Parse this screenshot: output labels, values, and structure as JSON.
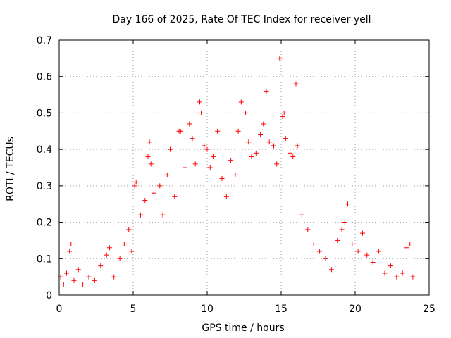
{
  "chart_data": {
    "type": "scatter",
    "title": "Day 166 of 2025, Rate Of TEC Index for receiver yell",
    "xlabel": "GPS time / hours",
    "ylabel": "ROTI / TECUs",
    "xlim": [
      0,
      25
    ],
    "ylim": [
      0,
      0.7
    ],
    "xticks": [
      0,
      5,
      10,
      15,
      20,
      25
    ],
    "yticks": [
      0,
      0.1,
      0.2,
      0.3,
      0.4,
      0.5,
      0.6,
      0.7
    ],
    "xtick_labels": [
      "0",
      "5",
      "10",
      "15",
      "20",
      "25"
    ],
    "ytick_labels": [
      "0",
      "0.1",
      "0.2",
      "0.3",
      "0.4",
      "0.5",
      "0.6",
      "0.7"
    ],
    "grid": true,
    "marker": "+",
    "color": "#ff0000",
    "series": [
      {
        "name": "ROTI",
        "points": [
          [
            0.1,
            0.05
          ],
          [
            0.3,
            0.03
          ],
          [
            0.5,
            0.06
          ],
          [
            0.7,
            0.12
          ],
          [
            0.8,
            0.14
          ],
          [
            1.0,
            0.04
          ],
          [
            1.3,
            0.07
          ],
          [
            1.6,
            0.03
          ],
          [
            2.0,
            0.05
          ],
          [
            2.4,
            0.04
          ],
          [
            2.8,
            0.08
          ],
          [
            3.2,
            0.11
          ],
          [
            3.4,
            0.13
          ],
          [
            3.7,
            0.05
          ],
          [
            4.1,
            0.1
          ],
          [
            4.4,
            0.14
          ],
          [
            4.7,
            0.18
          ],
          [
            4.9,
            0.12
          ],
          [
            5.1,
            0.3
          ],
          [
            5.2,
            0.31
          ],
          [
            5.5,
            0.22
          ],
          [
            5.8,
            0.26
          ],
          [
            6.0,
            0.38
          ],
          [
            6.1,
            0.42
          ],
          [
            6.2,
            0.36
          ],
          [
            6.4,
            0.28
          ],
          [
            6.8,
            0.3
          ],
          [
            7.0,
            0.22
          ],
          [
            7.3,
            0.33
          ],
          [
            7.5,
            0.4
          ],
          [
            7.8,
            0.27
          ],
          [
            8.1,
            0.45
          ],
          [
            8.2,
            0.45
          ],
          [
            8.5,
            0.35
          ],
          [
            8.8,
            0.47
          ],
          [
            9.0,
            0.43
          ],
          [
            9.2,
            0.36
          ],
          [
            9.5,
            0.53
          ],
          [
            9.6,
            0.5
          ],
          [
            9.8,
            0.41
          ],
          [
            10.0,
            0.4
          ],
          [
            10.2,
            0.35
          ],
          [
            10.4,
            0.38
          ],
          [
            10.7,
            0.45
          ],
          [
            11.0,
            0.32
          ],
          [
            11.3,
            0.27
          ],
          [
            11.6,
            0.37
          ],
          [
            11.9,
            0.33
          ],
          [
            12.1,
            0.45
          ],
          [
            12.3,
            0.53
          ],
          [
            12.6,
            0.5
          ],
          [
            12.8,
            0.42
          ],
          [
            13.0,
            0.38
          ],
          [
            13.3,
            0.39
          ],
          [
            13.6,
            0.44
          ],
          [
            13.8,
            0.47
          ],
          [
            14.0,
            0.56
          ],
          [
            14.2,
            0.42
          ],
          [
            14.5,
            0.41
          ],
          [
            14.7,
            0.36
          ],
          [
            14.9,
            0.65
          ],
          [
            15.1,
            0.49
          ],
          [
            15.2,
            0.5
          ],
          [
            15.3,
            0.43
          ],
          [
            15.6,
            0.39
          ],
          [
            15.8,
            0.38
          ],
          [
            16.0,
            0.58
          ],
          [
            16.1,
            0.41
          ],
          [
            16.4,
            0.22
          ],
          [
            16.8,
            0.18
          ],
          [
            17.2,
            0.14
          ],
          [
            17.6,
            0.12
          ],
          [
            18.0,
            0.1
          ],
          [
            18.4,
            0.07
          ],
          [
            18.8,
            0.15
          ],
          [
            19.1,
            0.18
          ],
          [
            19.3,
            0.2
          ],
          [
            19.5,
            0.25
          ],
          [
            19.8,
            0.14
          ],
          [
            20.2,
            0.12
          ],
          [
            20.5,
            0.17
          ],
          [
            20.8,
            0.11
          ],
          [
            21.2,
            0.09
          ],
          [
            21.6,
            0.12
          ],
          [
            22.0,
            0.06
          ],
          [
            22.4,
            0.08
          ],
          [
            22.8,
            0.05
          ],
          [
            23.2,
            0.06
          ],
          [
            23.5,
            0.13
          ],
          [
            23.7,
            0.14
          ],
          [
            23.9,
            0.05
          ]
        ]
      }
    ]
  }
}
